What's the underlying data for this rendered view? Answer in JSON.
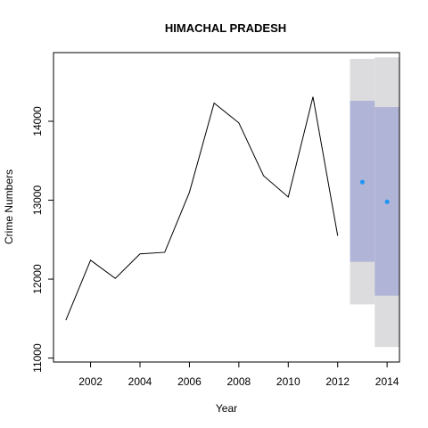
{
  "chart_data": {
    "type": "line",
    "title": "HIMACHAL PRADESH",
    "xlabel": "Year",
    "ylabel": "Crime Numbers",
    "xlim": [
      2000.5,
      2014.5
    ],
    "ylim": [
      10950,
      14870
    ],
    "x_ticks": [
      2002,
      2004,
      2006,
      2008,
      2010,
      2012,
      2014
    ],
    "y_ticks": [
      11000,
      12000,
      13000,
      14000
    ],
    "grid": false,
    "series": [
      {
        "x": [
          2001,
          2002,
          2003,
          2004,
          2005,
          2006,
          2007,
          2008,
          2009,
          2010,
          2011,
          2012
        ],
        "values": [
          11480,
          12240,
          12010,
          12320,
          12340,
          13100,
          14230,
          13980,
          13310,
          13040,
          14310,
          12550
        ]
      }
    ],
    "forecast": {
      "x": [
        2013,
        2014
      ],
      "mean": [
        13230,
        12980
      ],
      "lo80": [
        12220,
        11790
      ],
      "hi80": [
        14260,
        14180
      ],
      "lo95": [
        11680,
        11140
      ],
      "hi95": [
        14790,
        14810
      ]
    },
    "colors": {
      "line": "#000000",
      "point": "#2196f3",
      "band80": "#b0b4d6",
      "band95": "#dcdcdf"
    }
  }
}
